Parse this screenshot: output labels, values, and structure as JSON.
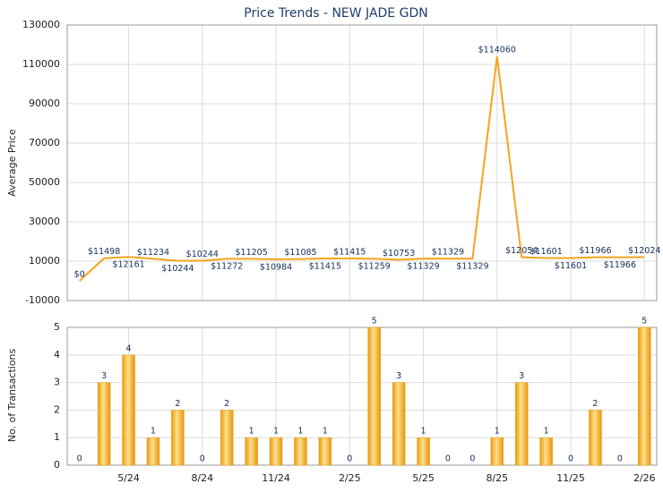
{
  "chart_data": [
    {
      "type": "line",
      "title": "Price Trends - NEW JADE GDN",
      "y_label": "Average Price",
      "color": "#f5a41c",
      "values": [
        0,
        11498,
        12161,
        11234,
        10244,
        10244,
        11272,
        11205,
        10984,
        11085,
        11415,
        11415,
        11259,
        10753,
        11329,
        11329,
        11329,
        114060,
        12054,
        11601,
        11601,
        11966,
        11966,
        12024
      ],
      "value_labels": [
        "$0",
        "$11498",
        "$12161",
        "$11234",
        "$10244",
        "$10244",
        "$11272",
        "$11205",
        "$10984",
        "$11085",
        "$11415",
        "$11415",
        "$11259",
        "$10753",
        "$11329",
        "$11329",
        "$11329",
        "$114060",
        "$12054",
        "$11601",
        "$11601",
        "$11966",
        "$11966",
        "$12024"
      ],
      "ylim": [
        -10000,
        130000
      ],
      "yticks": [
        -10000,
        10000,
        30000,
        50000,
        70000,
        90000,
        110000,
        130000
      ],
      "grid": true
    },
    {
      "type": "bar",
      "y_label": "No. of Transactions",
      "color": "#f0a010",
      "categories": [
        null,
        null,
        "5/24",
        null,
        null,
        "8/24",
        null,
        null,
        "11/24",
        null,
        null,
        "2/25",
        null,
        null,
        "5/25",
        null,
        null,
        "8/25",
        null,
        null,
        "11/25",
        null,
        null,
        "2/26"
      ],
      "values": [
        0,
        3,
        4,
        1,
        2,
        0,
        2,
        1,
        1,
        1,
        1,
        0,
        5,
        3,
        1,
        0,
        0,
        1,
        3,
        1,
        0,
        2,
        0,
        5
      ],
      "ylim": [
        0,
        5
      ],
      "yticks": [
        0,
        1,
        2,
        3,
        4,
        5
      ],
      "grid": true
    }
  ]
}
